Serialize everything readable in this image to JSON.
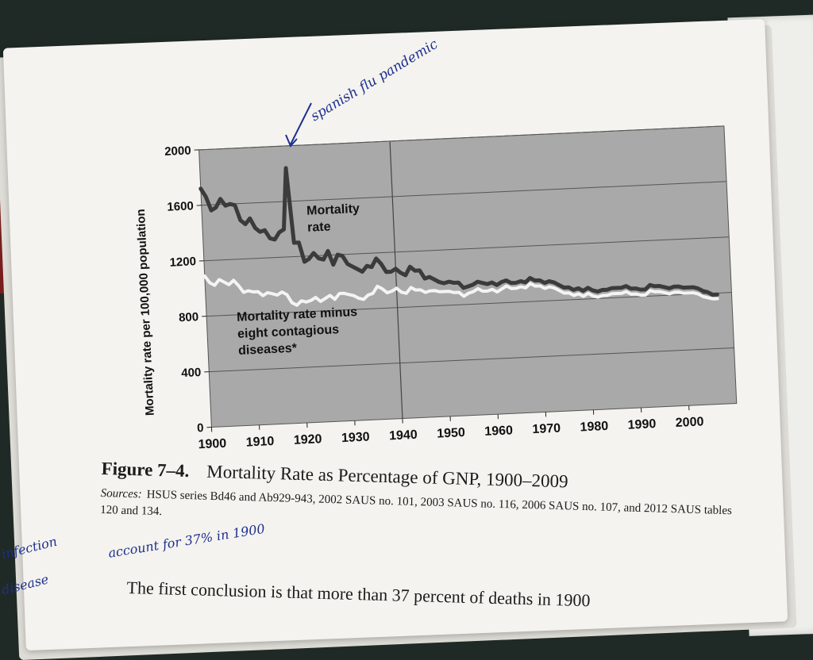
{
  "chart_data": {
    "type": "line",
    "title": "",
    "xlabel": "",
    "ylabel": "Mortality rate per 100,000 population",
    "xlim": [
      1900,
      2010
    ],
    "ylim": [
      0,
      2000
    ],
    "x_ticks": [
      "1900",
      "1910",
      "1920",
      "1930",
      "1940",
      "1950",
      "1960",
      "1970",
      "1980",
      "1990",
      "2000"
    ],
    "y_ticks": [
      "0",
      "400",
      "800",
      "1200",
      "1600",
      "2000"
    ],
    "grid": "horizontal",
    "reference_line_x": 1940,
    "plot_background": "#a9a9a9",
    "series": [
      {
        "name": "Mortality rate",
        "color": "#3b3b3b",
        "points": [
          [
            1900,
            1720
          ],
          [
            1901,
            1660
          ],
          [
            1902,
            1560
          ],
          [
            1903,
            1580
          ],
          [
            1904,
            1640
          ],
          [
            1905,
            1590
          ],
          [
            1906,
            1600
          ],
          [
            1907,
            1590
          ],
          [
            1908,
            1480
          ],
          [
            1909,
            1450
          ],
          [
            1910,
            1490
          ],
          [
            1911,
            1420
          ],
          [
            1912,
            1390
          ],
          [
            1913,
            1400
          ],
          [
            1914,
            1340
          ],
          [
            1915,
            1330
          ],
          [
            1916,
            1380
          ],
          [
            1917,
            1400
          ],
          [
            1918,
            1840
          ],
          [
            1919,
            1300
          ],
          [
            1920,
            1300
          ],
          [
            1921,
            1160
          ],
          [
            1922,
            1180
          ],
          [
            1923,
            1220
          ],
          [
            1924,
            1180
          ],
          [
            1925,
            1170
          ],
          [
            1926,
            1230
          ],
          [
            1927,
            1130
          ],
          [
            1928,
            1200
          ],
          [
            1929,
            1190
          ],
          [
            1930,
            1130
          ],
          [
            1931,
            1110
          ],
          [
            1932,
            1090
          ],
          [
            1933,
            1070
          ],
          [
            1934,
            1110
          ],
          [
            1935,
            1100
          ],
          [
            1936,
            1160
          ],
          [
            1937,
            1120
          ],
          [
            1938,
            1060
          ],
          [
            1939,
            1060
          ],
          [
            1940,
            1080
          ],
          [
            1941,
            1050
          ],
          [
            1942,
            1030
          ],
          [
            1943,
            1090
          ],
          [
            1944,
            1060
          ],
          [
            1945,
            1060
          ],
          [
            1946,
            1000
          ],
          [
            1947,
            1010
          ],
          [
            1948,
            990
          ],
          [
            1949,
            970
          ],
          [
            1950,
            960
          ],
          [
            1951,
            970
          ],
          [
            1952,
            960
          ],
          [
            1953,
            960
          ],
          [
            1954,
            920
          ],
          [
            1955,
            930
          ],
          [
            1956,
            940
          ],
          [
            1957,
            960
          ],
          [
            1958,
            950
          ],
          [
            1959,
            940
          ],
          [
            1960,
            950
          ],
          [
            1961,
            930
          ],
          [
            1962,
            950
          ],
          [
            1963,
            960
          ],
          [
            1964,
            940
          ],
          [
            1965,
            940
          ],
          [
            1966,
            950
          ],
          [
            1967,
            940
          ],
          [
            1968,
            970
          ],
          [
            1969,
            950
          ],
          [
            1970,
            950
          ],
          [
            1971,
            930
          ],
          [
            1972,
            940
          ],
          [
            1973,
            930
          ],
          [
            1974,
            910
          ],
          [
            1975,
            890
          ],
          [
            1976,
            890
          ],
          [
            1977,
            870
          ],
          [
            1978,
            880
          ],
          [
            1979,
            860
          ],
          [
            1980,
            880
          ],
          [
            1981,
            860
          ],
          [
            1982,
            850
          ],
          [
            1983,
            860
          ],
          [
            1984,
            860
          ],
          [
            1985,
            870
          ],
          [
            1986,
            870
          ],
          [
            1987,
            870
          ],
          [
            1988,
            880
          ],
          [
            1989,
            860
          ],
          [
            1990,
            860
          ],
          [
            1991,
            850
          ],
          [
            1992,
            850
          ],
          [
            1993,
            880
          ],
          [
            1994,
            870
          ],
          [
            1995,
            870
          ],
          [
            1996,
            860
          ],
          [
            1997,
            850
          ],
          [
            1998,
            860
          ],
          [
            1999,
            860
          ],
          [
            2000,
            850
          ],
          [
            2001,
            850
          ],
          [
            2002,
            850
          ],
          [
            2003,
            840
          ],
          [
            2004,
            820
          ],
          [
            2005,
            810
          ],
          [
            2006,
            790
          ],
          [
            2007,
            790
          ]
        ]
      },
      {
        "name": "Mortality rate minus eight contagious diseases*",
        "color": "#f4f4f4",
        "points": [
          [
            1900,
            1090
          ],
          [
            1901,
            1040
          ],
          [
            1902,
            1020
          ],
          [
            1903,
            1060
          ],
          [
            1904,
            1040
          ],
          [
            1905,
            1020
          ],
          [
            1906,
            1050
          ],
          [
            1907,
            1010
          ],
          [
            1908,
            960
          ],
          [
            1909,
            970
          ],
          [
            1910,
            960
          ],
          [
            1911,
            960
          ],
          [
            1912,
            930
          ],
          [
            1913,
            950
          ],
          [
            1914,
            940
          ],
          [
            1915,
            930
          ],
          [
            1916,
            950
          ],
          [
            1917,
            930
          ],
          [
            1918,
            870
          ],
          [
            1919,
            850
          ],
          [
            1920,
            880
          ],
          [
            1921,
            870
          ],
          [
            1922,
            880
          ],
          [
            1923,
            900
          ],
          [
            1924,
            870
          ],
          [
            1925,
            890
          ],
          [
            1926,
            910
          ],
          [
            1927,
            880
          ],
          [
            1928,
            920
          ],
          [
            1929,
            920
          ],
          [
            1930,
            910
          ],
          [
            1931,
            900
          ],
          [
            1932,
            880
          ],
          [
            1933,
            870
          ],
          [
            1934,
            900
          ],
          [
            1935,
            910
          ],
          [
            1936,
            960
          ],
          [
            1937,
            940
          ],
          [
            1938,
            910
          ],
          [
            1939,
            920
          ],
          [
            1940,
            940
          ],
          [
            1941,
            910
          ],
          [
            1942,
            900
          ],
          [
            1943,
            940
          ],
          [
            1944,
            920
          ],
          [
            1945,
            920
          ],
          [
            1946,
            900
          ],
          [
            1947,
            910
          ],
          [
            1948,
            910
          ],
          [
            1949,
            900
          ],
          [
            1950,
            900
          ],
          [
            1951,
            900
          ],
          [
            1952,
            890
          ],
          [
            1953,
            890
          ],
          [
            1954,
            860
          ],
          [
            1955,
            880
          ],
          [
            1956,
            890
          ],
          [
            1957,
            910
          ],
          [
            1958,
            890
          ],
          [
            1959,
            890
          ],
          [
            1960,
            900
          ],
          [
            1961,
            880
          ],
          [
            1962,
            900
          ],
          [
            1963,
            920
          ],
          [
            1964,
            900
          ],
          [
            1965,
            900
          ],
          [
            1966,
            910
          ],
          [
            1967,
            900
          ],
          [
            1968,
            930
          ],
          [
            1969,
            910
          ],
          [
            1970,
            910
          ],
          [
            1971,
            890
          ],
          [
            1972,
            900
          ],
          [
            1973,
            890
          ],
          [
            1974,
            870
          ],
          [
            1975,
            850
          ],
          [
            1976,
            850
          ],
          [
            1977,
            830
          ],
          [
            1978,
            840
          ],
          [
            1979,
            820
          ],
          [
            1980,
            840
          ],
          [
            1981,
            820
          ],
          [
            1982,
            810
          ],
          [
            1983,
            820
          ],
          [
            1984,
            820
          ],
          [
            1985,
            830
          ],
          [
            1986,
            830
          ],
          [
            1987,
            830
          ],
          [
            1988,
            840
          ],
          [
            1989,
            820
          ],
          [
            1990,
            820
          ],
          [
            1991,
            810
          ],
          [
            1992,
            810
          ],
          [
            1993,
            840
          ],
          [
            1994,
            830
          ],
          [
            1995,
            830
          ],
          [
            1996,
            820
          ],
          [
            1997,
            810
          ],
          [
            1998,
            820
          ],
          [
            1999,
            820
          ],
          [
            2000,
            810
          ],
          [
            2001,
            810
          ],
          [
            2002,
            810
          ],
          [
            2003,
            800
          ],
          [
            2004,
            780
          ],
          [
            2005,
            770
          ],
          [
            2006,
            760
          ],
          [
            2007,
            760
          ]
        ]
      }
    ],
    "annotations": [
      {
        "text": "Mortality",
        "series_index": 0
      },
      {
        "text": "rate",
        "series_index": 0
      },
      {
        "text": "Mortality rate minus",
        "series_index": 1
      },
      {
        "text": "eight contagious",
        "series_index": 1
      },
      {
        "text": "diseases*",
        "series_index": 1
      }
    ]
  },
  "caption": {
    "figure_label": "Figure 7–4.",
    "title": "Mortality Rate as Percentage of GNP, 1900–2009",
    "sources_label": "Sources:",
    "sources_text": "HSUS series Bd46 and Ab929-943, 2002 SAUS no. 101, 2003 SAUS no. 116, 2006 SAUS no. 107, and 2012 SAUS tables 120 and 134."
  },
  "body_text": "The first conclusion is that more than 37 percent of deaths in 1900",
  "handwriting": {
    "annotation": "spanish flu pandemic",
    "margin_note_1": "infection",
    "margin_note_2": "disease",
    "margin_note_3": "account for 37% in 1900"
  }
}
